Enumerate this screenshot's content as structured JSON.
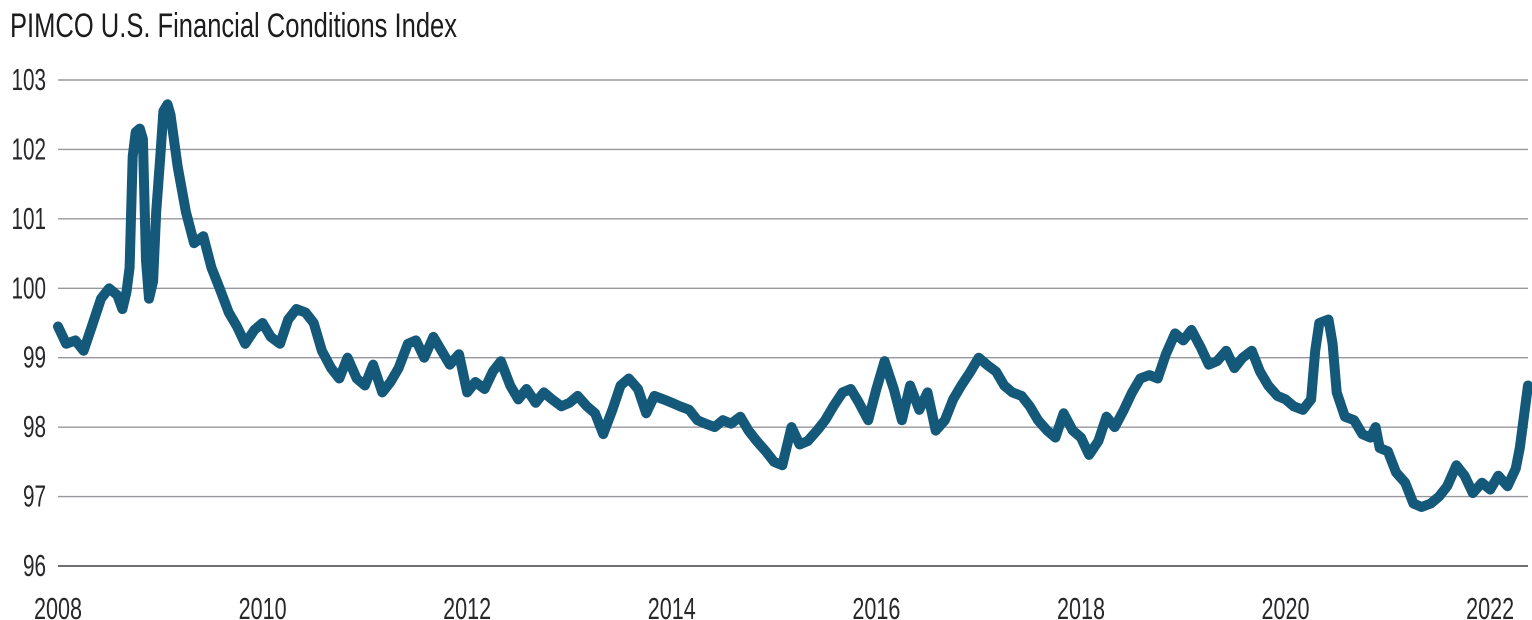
{
  "chart_data": {
    "type": "line",
    "title": "PIMCO U.S. Financial Conditions Index",
    "xlabel": "",
    "ylabel": "",
    "ylim": [
      96,
      103
    ],
    "y_ticks": [
      96,
      97,
      98,
      99,
      100,
      101,
      102,
      103
    ],
    "x_ticks": [
      2008,
      2010,
      2012,
      2014,
      2016,
      2018,
      2020,
      2022
    ],
    "x_range": [
      2008.0,
      2022.37
    ],
    "grid": "horizontal",
    "legend": "none",
    "line_color": "#14587a",
    "grid_color": "#97979d",
    "axis_color": "#6e6e73",
    "text_color": "#28282b",
    "series": [
      {
        "name": "PIMCO U.S. Financial Conditions Index",
        "points": [
          [
            2008.0,
            99.45
          ],
          [
            2008.08,
            99.2
          ],
          [
            2008.17,
            99.25
          ],
          [
            2008.25,
            99.1
          ],
          [
            2008.33,
            99.45
          ],
          [
            2008.42,
            99.85
          ],
          [
            2008.5,
            100.0
          ],
          [
            2008.58,
            99.9
          ],
          [
            2008.63,
            99.7
          ],
          [
            2008.67,
            99.95
          ],
          [
            2008.7,
            100.3
          ],
          [
            2008.73,
            101.9
          ],
          [
            2008.76,
            102.25
          ],
          [
            2008.8,
            102.3
          ],
          [
            2008.83,
            102.15
          ],
          [
            2008.86,
            100.4
          ],
          [
            2008.89,
            99.85
          ],
          [
            2008.93,
            100.1
          ],
          [
            2008.96,
            101.1
          ],
          [
            2009.0,
            101.9
          ],
          [
            2009.03,
            102.55
          ],
          [
            2009.07,
            102.65
          ],
          [
            2009.1,
            102.5
          ],
          [
            2009.17,
            101.75
          ],
          [
            2009.25,
            101.1
          ],
          [
            2009.33,
            100.65
          ],
          [
            2009.42,
            100.75
          ],
          [
            2009.5,
            100.3
          ],
          [
            2009.58,
            100.0
          ],
          [
            2009.67,
            99.65
          ],
          [
            2009.75,
            99.45
          ],
          [
            2009.83,
            99.2
          ],
          [
            2009.92,
            99.4
          ],
          [
            2010.0,
            99.5
          ],
          [
            2010.08,
            99.3
          ],
          [
            2010.17,
            99.2
          ],
          [
            2010.25,
            99.55
          ],
          [
            2010.33,
            99.7
          ],
          [
            2010.42,
            99.65
          ],
          [
            2010.5,
            99.5
          ],
          [
            2010.58,
            99.1
          ],
          [
            2010.67,
            98.85
          ],
          [
            2010.75,
            98.7
          ],
          [
            2010.83,
            99.0
          ],
          [
            2010.92,
            98.7
          ],
          [
            2011.0,
            98.6
          ],
          [
            2011.08,
            98.9
          ],
          [
            2011.17,
            98.5
          ],
          [
            2011.25,
            98.65
          ],
          [
            2011.33,
            98.85
          ],
          [
            2011.42,
            99.2
          ],
          [
            2011.5,
            99.25
          ],
          [
            2011.58,
            99.0
          ],
          [
            2011.67,
            99.3
          ],
          [
            2011.75,
            99.1
          ],
          [
            2011.83,
            98.9
          ],
          [
            2011.92,
            99.05
          ],
          [
            2012.0,
            98.5
          ],
          [
            2012.08,
            98.65
          ],
          [
            2012.17,
            98.55
          ],
          [
            2012.25,
            98.8
          ],
          [
            2012.33,
            98.95
          ],
          [
            2012.42,
            98.6
          ],
          [
            2012.5,
            98.4
          ],
          [
            2012.58,
            98.55
          ],
          [
            2012.67,
            98.35
          ],
          [
            2012.75,
            98.5
          ],
          [
            2012.83,
            98.4
          ],
          [
            2012.92,
            98.3
          ],
          [
            2013.0,
            98.35
          ],
          [
            2013.08,
            98.45
          ],
          [
            2013.17,
            98.3
          ],
          [
            2013.25,
            98.2
          ],
          [
            2013.33,
            97.9
          ],
          [
            2013.42,
            98.25
          ],
          [
            2013.5,
            98.6
          ],
          [
            2013.58,
            98.7
          ],
          [
            2013.67,
            98.55
          ],
          [
            2013.75,
            98.2
          ],
          [
            2013.83,
            98.45
          ],
          [
            2013.92,
            98.4
          ],
          [
            2014.0,
            98.35
          ],
          [
            2014.08,
            98.3
          ],
          [
            2014.17,
            98.25
          ],
          [
            2014.25,
            98.1
          ],
          [
            2014.33,
            98.05
          ],
          [
            2014.42,
            98.0
          ],
          [
            2014.5,
            98.1
          ],
          [
            2014.58,
            98.05
          ],
          [
            2014.67,
            98.15
          ],
          [
            2014.75,
            97.95
          ],
          [
            2014.83,
            97.8
          ],
          [
            2014.92,
            97.65
          ],
          [
            2015.0,
            97.5
          ],
          [
            2015.08,
            97.45
          ],
          [
            2015.17,
            98.0
          ],
          [
            2015.25,
            97.75
          ],
          [
            2015.33,
            97.8
          ],
          [
            2015.42,
            97.95
          ],
          [
            2015.5,
            98.1
          ],
          [
            2015.58,
            98.3
          ],
          [
            2015.67,
            98.5
          ],
          [
            2015.75,
            98.55
          ],
          [
            2015.83,
            98.35
          ],
          [
            2015.92,
            98.1
          ],
          [
            2016.0,
            98.55
          ],
          [
            2016.08,
            98.95
          ],
          [
            2016.17,
            98.55
          ],
          [
            2016.25,
            98.1
          ],
          [
            2016.33,
            98.6
          ],
          [
            2016.42,
            98.25
          ],
          [
            2016.5,
            98.5
          ],
          [
            2016.58,
            97.95
          ],
          [
            2016.67,
            98.1
          ],
          [
            2016.75,
            98.4
          ],
          [
            2016.83,
            98.6
          ],
          [
            2016.92,
            98.8
          ],
          [
            2017.0,
            99.0
          ],
          [
            2017.08,
            98.9
          ],
          [
            2017.17,
            98.8
          ],
          [
            2017.25,
            98.6
          ],
          [
            2017.33,
            98.5
          ],
          [
            2017.42,
            98.45
          ],
          [
            2017.5,
            98.3
          ],
          [
            2017.58,
            98.1
          ],
          [
            2017.67,
            97.95
          ],
          [
            2017.75,
            97.85
          ],
          [
            2017.83,
            98.2
          ],
          [
            2017.92,
            97.95
          ],
          [
            2018.0,
            97.85
          ],
          [
            2018.08,
            97.6
          ],
          [
            2018.17,
            97.8
          ],
          [
            2018.25,
            98.15
          ],
          [
            2018.33,
            98.0
          ],
          [
            2018.42,
            98.25
          ],
          [
            2018.5,
            98.5
          ],
          [
            2018.58,
            98.7
          ],
          [
            2018.67,
            98.75
          ],
          [
            2018.75,
            98.7
          ],
          [
            2018.83,
            99.05
          ],
          [
            2018.92,
            99.35
          ],
          [
            2019.0,
            99.25
          ],
          [
            2019.08,
            99.4
          ],
          [
            2019.17,
            99.15
          ],
          [
            2019.25,
            98.9
          ],
          [
            2019.33,
            98.95
          ],
          [
            2019.42,
            99.1
          ],
          [
            2019.5,
            98.85
          ],
          [
            2019.58,
            99.0
          ],
          [
            2019.67,
            99.1
          ],
          [
            2019.75,
            98.8
          ],
          [
            2019.83,
            98.6
          ],
          [
            2019.92,
            98.45
          ],
          [
            2020.0,
            98.4
          ],
          [
            2020.08,
            98.3
          ],
          [
            2020.17,
            98.25
          ],
          [
            2020.25,
            98.4
          ],
          [
            2020.29,
            99.1
          ],
          [
            2020.33,
            99.5
          ],
          [
            2020.42,
            99.55
          ],
          [
            2020.46,
            99.2
          ],
          [
            2020.5,
            98.5
          ],
          [
            2020.58,
            98.15
          ],
          [
            2020.67,
            98.1
          ],
          [
            2020.75,
            97.9
          ],
          [
            2020.83,
            97.85
          ],
          [
            2020.88,
            98.0
          ],
          [
            2020.92,
            97.7
          ],
          [
            2021.0,
            97.65
          ],
          [
            2021.08,
            97.35
          ],
          [
            2021.17,
            97.2
          ],
          [
            2021.25,
            96.9
          ],
          [
            2021.33,
            96.85
          ],
          [
            2021.42,
            96.9
          ],
          [
            2021.5,
            97.0
          ],
          [
            2021.58,
            97.15
          ],
          [
            2021.67,
            97.45
          ],
          [
            2021.75,
            97.3
          ],
          [
            2021.83,
            97.05
          ],
          [
            2021.92,
            97.2
          ],
          [
            2022.0,
            97.1
          ],
          [
            2022.08,
            97.3
          ],
          [
            2022.17,
            97.15
          ],
          [
            2022.25,
            97.4
          ],
          [
            2022.29,
            97.7
          ],
          [
            2022.33,
            98.15
          ],
          [
            2022.37,
            98.6
          ]
        ]
      }
    ]
  }
}
